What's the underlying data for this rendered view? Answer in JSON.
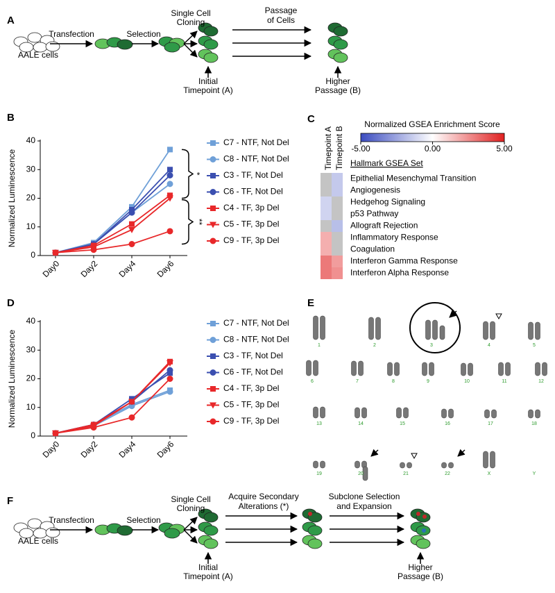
{
  "panel_labels": [
    "A",
    "B",
    "C",
    "D",
    "E",
    "F"
  ],
  "diagram_a": {
    "start_label": "AALE cells",
    "steps": [
      "Transfection",
      "Selection"
    ],
    "cloning": [
      "Single Cell",
      "Cloning"
    ],
    "passage": [
      "Passage",
      "of Cells"
    ],
    "initial": [
      "Initial",
      "Timepoint (A)"
    ],
    "higher": [
      "Higher",
      "Passage (B)"
    ]
  },
  "chart_data": [
    {
      "type": "line",
      "y_label": "Normalized Luminescence",
      "categories": [
        "Day0",
        "Day2",
        "Day4",
        "Day6"
      ],
      "ylim": [
        0,
        40
      ],
      "yticks": [
        0,
        10,
        20,
        30,
        40
      ],
      "annotations": [
        "*",
        "**"
      ],
      "series": [
        {
          "name": "C7 - NTF, Not Del",
          "color": "#6fa0d8",
          "marker": "square",
          "values": [
            1,
            4.5,
            17,
            37
          ]
        },
        {
          "name": "C8 - NTF, Not Del",
          "color": "#6fa0d8",
          "marker": "circle",
          "values": [
            1,
            4,
            15,
            25
          ]
        },
        {
          "name": "C3 - TF, Not Del",
          "color": "#3b4fb0",
          "marker": "square",
          "values": [
            1,
            4,
            16,
            30
          ]
        },
        {
          "name": "C6 - TF, Not Del",
          "color": "#3b4fb0",
          "marker": "circle",
          "values": [
            1,
            4,
            15,
            28
          ]
        },
        {
          "name": "C4 - TF, 3p Del",
          "color": "#e8282a",
          "marker": "square",
          "values": [
            1,
            3.5,
            11,
            21
          ]
        },
        {
          "name": "C5 - TF, 3p Del",
          "color": "#e8282a",
          "marker": "triangle",
          "values": [
            1,
            3,
            9,
            20
          ]
        },
        {
          "name": "C9 - TF, 3p Del",
          "color": "#e8282a",
          "marker": "circle",
          "values": [
            1,
            2,
            4,
            8.5
          ]
        }
      ]
    },
    {
      "type": "line",
      "y_label": "Normalized Luminescence",
      "categories": [
        "Day0",
        "Day2",
        "Day4",
        "Day6"
      ],
      "ylim": [
        0,
        40
      ],
      "yticks": [
        0,
        10,
        20,
        30,
        40
      ],
      "series": [
        {
          "name": "C7 - NTF, Not Del",
          "color": "#6fa0d8",
          "marker": "square",
          "values": [
            1,
            4,
            11,
            16
          ]
        },
        {
          "name": "C8 - NTF, Not Del",
          "color": "#6fa0d8",
          "marker": "circle",
          "values": [
            1,
            3.5,
            10.5,
            15.5
          ]
        },
        {
          "name": "C3 - TF, Not Del",
          "color": "#3b4fb0",
          "marker": "square",
          "values": [
            1,
            4,
            13,
            22
          ]
        },
        {
          "name": "C6 - TF, Not Del",
          "color": "#3b4fb0",
          "marker": "circle",
          "values": [
            1,
            4,
            12,
            23
          ]
        },
        {
          "name": "C4 - TF, 3p Del",
          "color": "#e8282a",
          "marker": "square",
          "values": [
            1,
            4,
            12,
            26
          ]
        },
        {
          "name": "C5 - TF, 3p Del",
          "color": "#e8282a",
          "marker": "triangle",
          "values": [
            1,
            3.5,
            12,
            25.5
          ]
        },
        {
          "name": "C9 - TF, 3p Del",
          "color": "#e8282a",
          "marker": "circle",
          "values": [
            1,
            3,
            6.5,
            20
          ]
        }
      ]
    }
  ],
  "heatmap_c": {
    "colorbar_title": "Normalized GSEA Enrichment Score",
    "colorbar_ticks": [
      {
        "value": -5,
        "label": "-5.00"
      },
      {
        "value": 0,
        "label": "0.00"
      },
      {
        "value": 5,
        "label": "5.00"
      }
    ],
    "columns": [
      "Timepoint A",
      "Timepoint B"
    ],
    "row_header": "Hallmark GSEA Set",
    "rows": [
      "Epithelial Mesenchymal Transition",
      "Angiogenesis",
      "Hedgehog Signaling",
      "p53 Pathway",
      "Allograft Rejection",
      "Inflammatory Response",
      "Coagulation",
      "Interferon Gamma Response",
      "Interferon Alpha Response"
    ],
    "values": [
      [
        null,
        -1.5
      ],
      [
        null,
        -1.5
      ],
      [
        -1.2,
        null
      ],
      [
        -1.2,
        null
      ],
      [
        null,
        -1.8
      ],
      [
        1.8,
        null
      ],
      [
        1.8,
        null
      ],
      [
        3,
        2.2
      ],
      [
        3,
        2.5
      ]
    ],
    "colors": {
      "low": "#3b4cc0",
      "mid": "#ffffff",
      "high": "#e02020",
      "missing": "#c4c4c4"
    }
  },
  "karyotype_e": {
    "chromosomes": [
      "1",
      "2",
      "3",
      "4",
      "5",
      "6",
      "7",
      "8",
      "9",
      "10",
      "11",
      "12",
      "13",
      "14",
      "15",
      "16",
      "17",
      "18",
      "19",
      "20",
      "21",
      "22",
      "X",
      "Y"
    ]
  },
  "diagram_f": {
    "start_label": "AALE cells",
    "steps": [
      "Transfection",
      "Selection"
    ],
    "cloning": [
      "Single Cell",
      "Cloning"
    ],
    "stage2": [
      "Acquire Secondary",
      "Alterations (*)"
    ],
    "stage3": [
      "Subclone Selection",
      "and Expansion"
    ],
    "initial": [
      "Initial",
      "Timepoint (A)"
    ],
    "higher": [
      "Higher",
      "Passage (B)"
    ]
  }
}
